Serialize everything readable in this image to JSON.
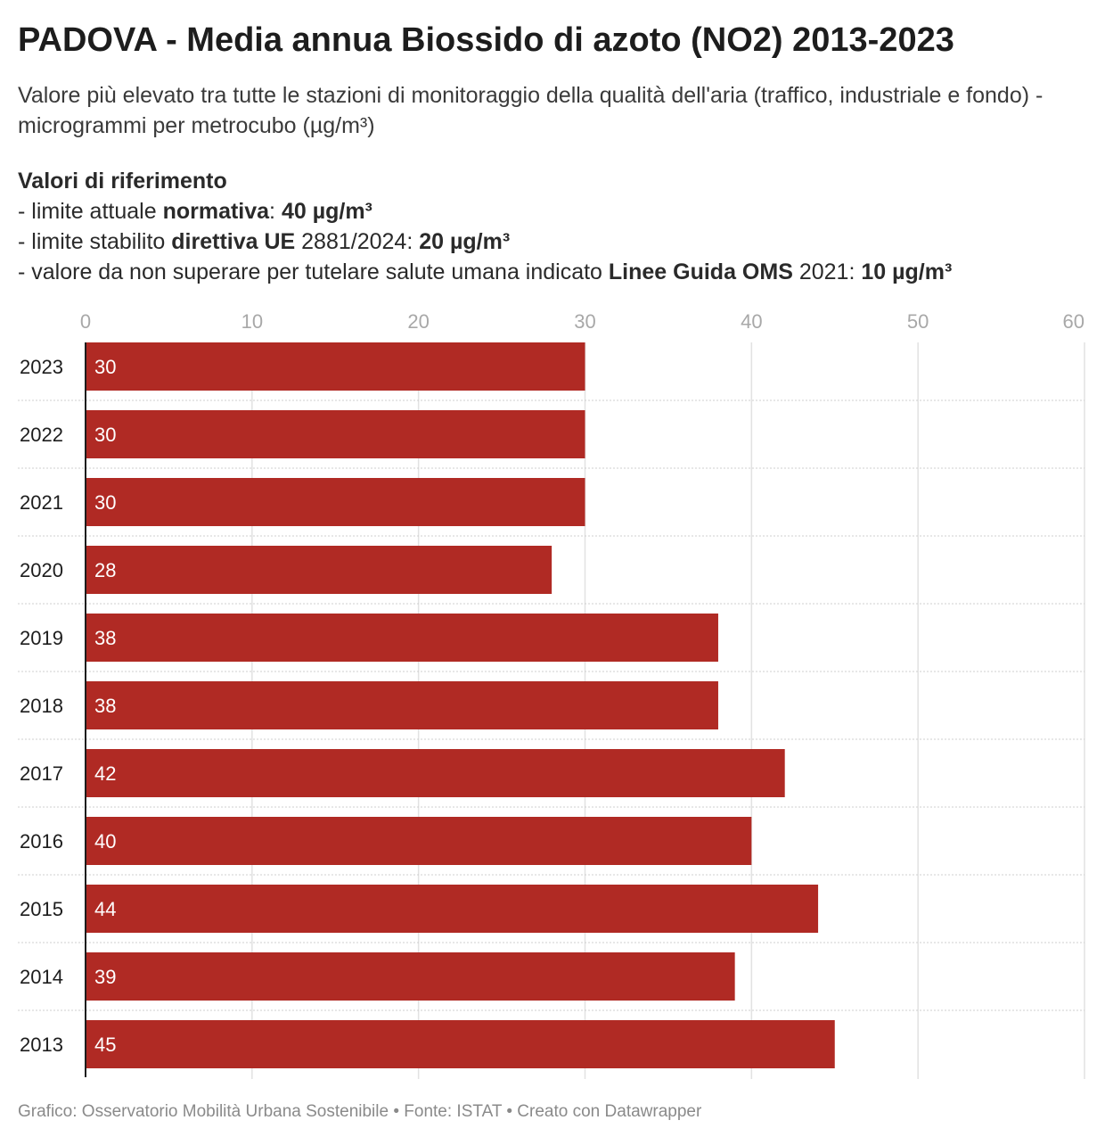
{
  "title": "PADOVA - Media annua Biossido di azoto (NO2) 2013-2023",
  "subtitle": "Valore più elevato tra tutte le stazioni di monitoraggio della qualità dell'aria (traffico, industriale e fondo) - microgrammi per metrocubo (µg/m³)",
  "references": {
    "heading": "Valori di riferimento",
    "items": [
      {
        "prefix": "- limite attuale ",
        "bold": "normativa",
        "middle": ": ",
        "value": "40 µg/m³"
      },
      {
        "prefix": "- limite stabilito ",
        "bold": "direttiva UE",
        "middle": " 2881/2024: ",
        "value": "20 µg/m³"
      },
      {
        "prefix": "- valore da non superare per tutelare salute umana indicato ",
        "bold": "Linee Guida OMS",
        "middle": " 2021: ",
        "value": "10 µg/m³"
      }
    ]
  },
  "footer": "Grafico: Osservatorio Mobilità Urbana Sostenibile • Fonte: ISTAT • Creato con Datawrapper",
  "colors": {
    "bar": "#b02a24",
    "grid": "#e2e2e2",
    "tick_label": "#a8a8a8",
    "bar_label": "#ffffff"
  },
  "chart_data": {
    "type": "bar",
    "orientation": "horizontal",
    "categories": [
      "2023",
      "2022",
      "2021",
      "2020",
      "2019",
      "2018",
      "2017",
      "2016",
      "2015",
      "2014",
      "2013"
    ],
    "values": [
      30,
      30,
      30,
      28,
      38,
      38,
      42,
      40,
      44,
      39,
      45
    ],
    "xlim": [
      0,
      60
    ],
    "x_ticks": [
      0,
      10,
      20,
      30,
      40,
      50,
      60
    ],
    "grid": true,
    "legend": false
  }
}
